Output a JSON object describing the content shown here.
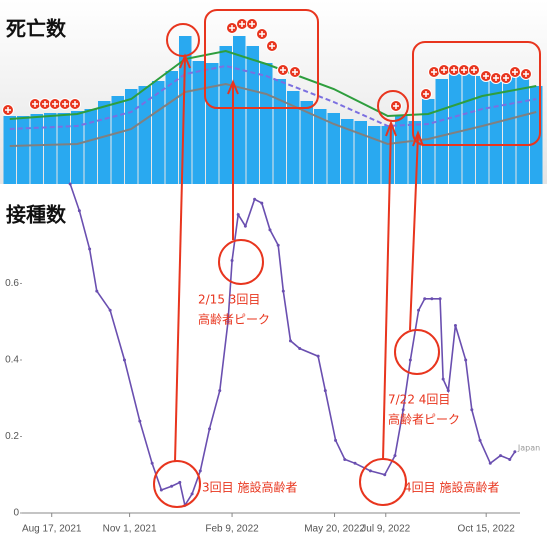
{
  "chart_data": [
    {
      "type": "bar",
      "title": "死亡数",
      "color": "#29a9f0",
      "values": [
        68,
        68,
        70,
        71,
        71,
        73,
        75,
        83,
        88,
        95,
        98,
        103,
        113,
        148,
        123,
        121,
        138,
        148,
        138,
        121,
        105,
        93,
        83,
        75,
        71,
        65,
        63,
        58,
        58,
        68,
        63,
        85,
        105,
        111,
        111,
        108,
        103,
        108,
        108,
        98
      ],
      "lines": [
        {
          "color": "#2e9e3e",
          "dash": false,
          "x": [
            0,
            5,
            9,
            13,
            16,
            19,
            24,
            28,
            31,
            35,
            39
          ],
          "values": [
            65,
            70,
            85,
            125,
            133,
            120,
            95,
            68,
            70,
            88,
            98
          ]
        },
        {
          "color": "#7b6fe0",
          "dash": true,
          "x": [
            0,
            5,
            9,
            13,
            16,
            19,
            24,
            28,
            31,
            35,
            39
          ],
          "values": [
            55,
            58,
            72,
            110,
            118,
            108,
            82,
            58,
            60,
            75,
            85
          ]
        },
        {
          "color": "#808080",
          "dash": false,
          "x": [
            0,
            5,
            9,
            13,
            16,
            19,
            24,
            28,
            31,
            35,
            39
          ],
          "values": [
            38,
            40,
            55,
            92,
            100,
            90,
            60,
            40,
            45,
            58,
            72
          ]
        }
      ]
    },
    {
      "type": "line",
      "title": "接種数",
      "x": [
        "2021-09-04",
        "2021-09-13",
        "2021-09-23",
        "2021-09-30",
        "2021-10-13",
        "2021-10-27",
        "2021-11-11",
        "2021-11-23",
        "2021-12-02",
        "2021-12-12",
        "2021-12-20",
        "2021-12-25",
        "2022-01-01",
        "2022-01-09",
        "2022-01-18",
        "2022-01-28",
        "2022-02-05",
        "2022-02-09",
        "2022-02-15",
        "2022-02-22",
        "2022-03-03",
        "2022-03-10",
        "2022-03-18",
        "2022-03-26",
        "2022-03-31",
        "2022-04-07",
        "2022-04-16",
        "2022-05-04",
        "2022-05-11",
        "2022-05-21",
        "2022-05-30",
        "2022-06-09",
        "2022-06-24",
        "2022-07-08",
        "2022-07-18",
        "2022-07-26",
        "2022-08-02",
        "2022-08-10",
        "2022-08-16",
        "2022-08-23",
        "2022-08-31",
        "2022-09-03",
        "2022-09-08",
        "2022-09-15",
        "2022-09-25",
        "2022-10-01",
        "2022-10-09",
        "2022-10-19",
        "2022-10-29",
        "2022-11-07",
        "2022-11-12"
      ],
      "series": [
        {
          "name": "Japan",
          "color": "#6a4fb0",
          "values": [
            0.86,
            0.79,
            0.69,
            0.58,
            0.53,
            0.4,
            0.24,
            0.13,
            0.06,
            0.07,
            0.08,
            0.02,
            0.05,
            0.11,
            0.22,
            0.32,
            0.5,
            0.66,
            0.78,
            0.75,
            0.82,
            0.81,
            0.74,
            0.7,
            0.58,
            0.45,
            0.43,
            0.41,
            0.32,
            0.19,
            0.14,
            0.13,
            0.11,
            0.1,
            0.15,
            0.27,
            0.4,
            0.53,
            0.56,
            0.56,
            0.56,
            0.35,
            0.32,
            0.49,
            0.4,
            0.27,
            0.19,
            0.13,
            0.15,
            0.14,
            0.16
          ]
        }
      ],
      "xlim": [
        "2021-07-19",
        "2022-11-17"
      ],
      "xticks": [
        {
          "value": "2021-08-17",
          "label": "Aug 17, 2021"
        },
        {
          "value": "2021-11-01",
          "label": "Nov 1, 2021"
        },
        {
          "value": "2022-02-09",
          "label": "Feb 9, 2022"
        },
        {
          "value": "2022-05-20",
          "label": "May 20, 2022"
        },
        {
          "value": "2022-07-09",
          "label": "Jul 9, 2022"
        },
        {
          "value": "2022-10-15",
          "label": "Oct 15, 2022"
        }
      ],
      "ylim": [
        0,
        0.86
      ],
      "yticks": [
        0,
        0.2,
        0.4,
        0.6
      ],
      "annotations": [
        "2/15 3回目",
        "高齢者ピーク",
        "3回目 施設高齢者",
        "7/22 4回目",
        "高齢者ピーク",
        "4回目 施設高齢者"
      ]
    }
  ]
}
